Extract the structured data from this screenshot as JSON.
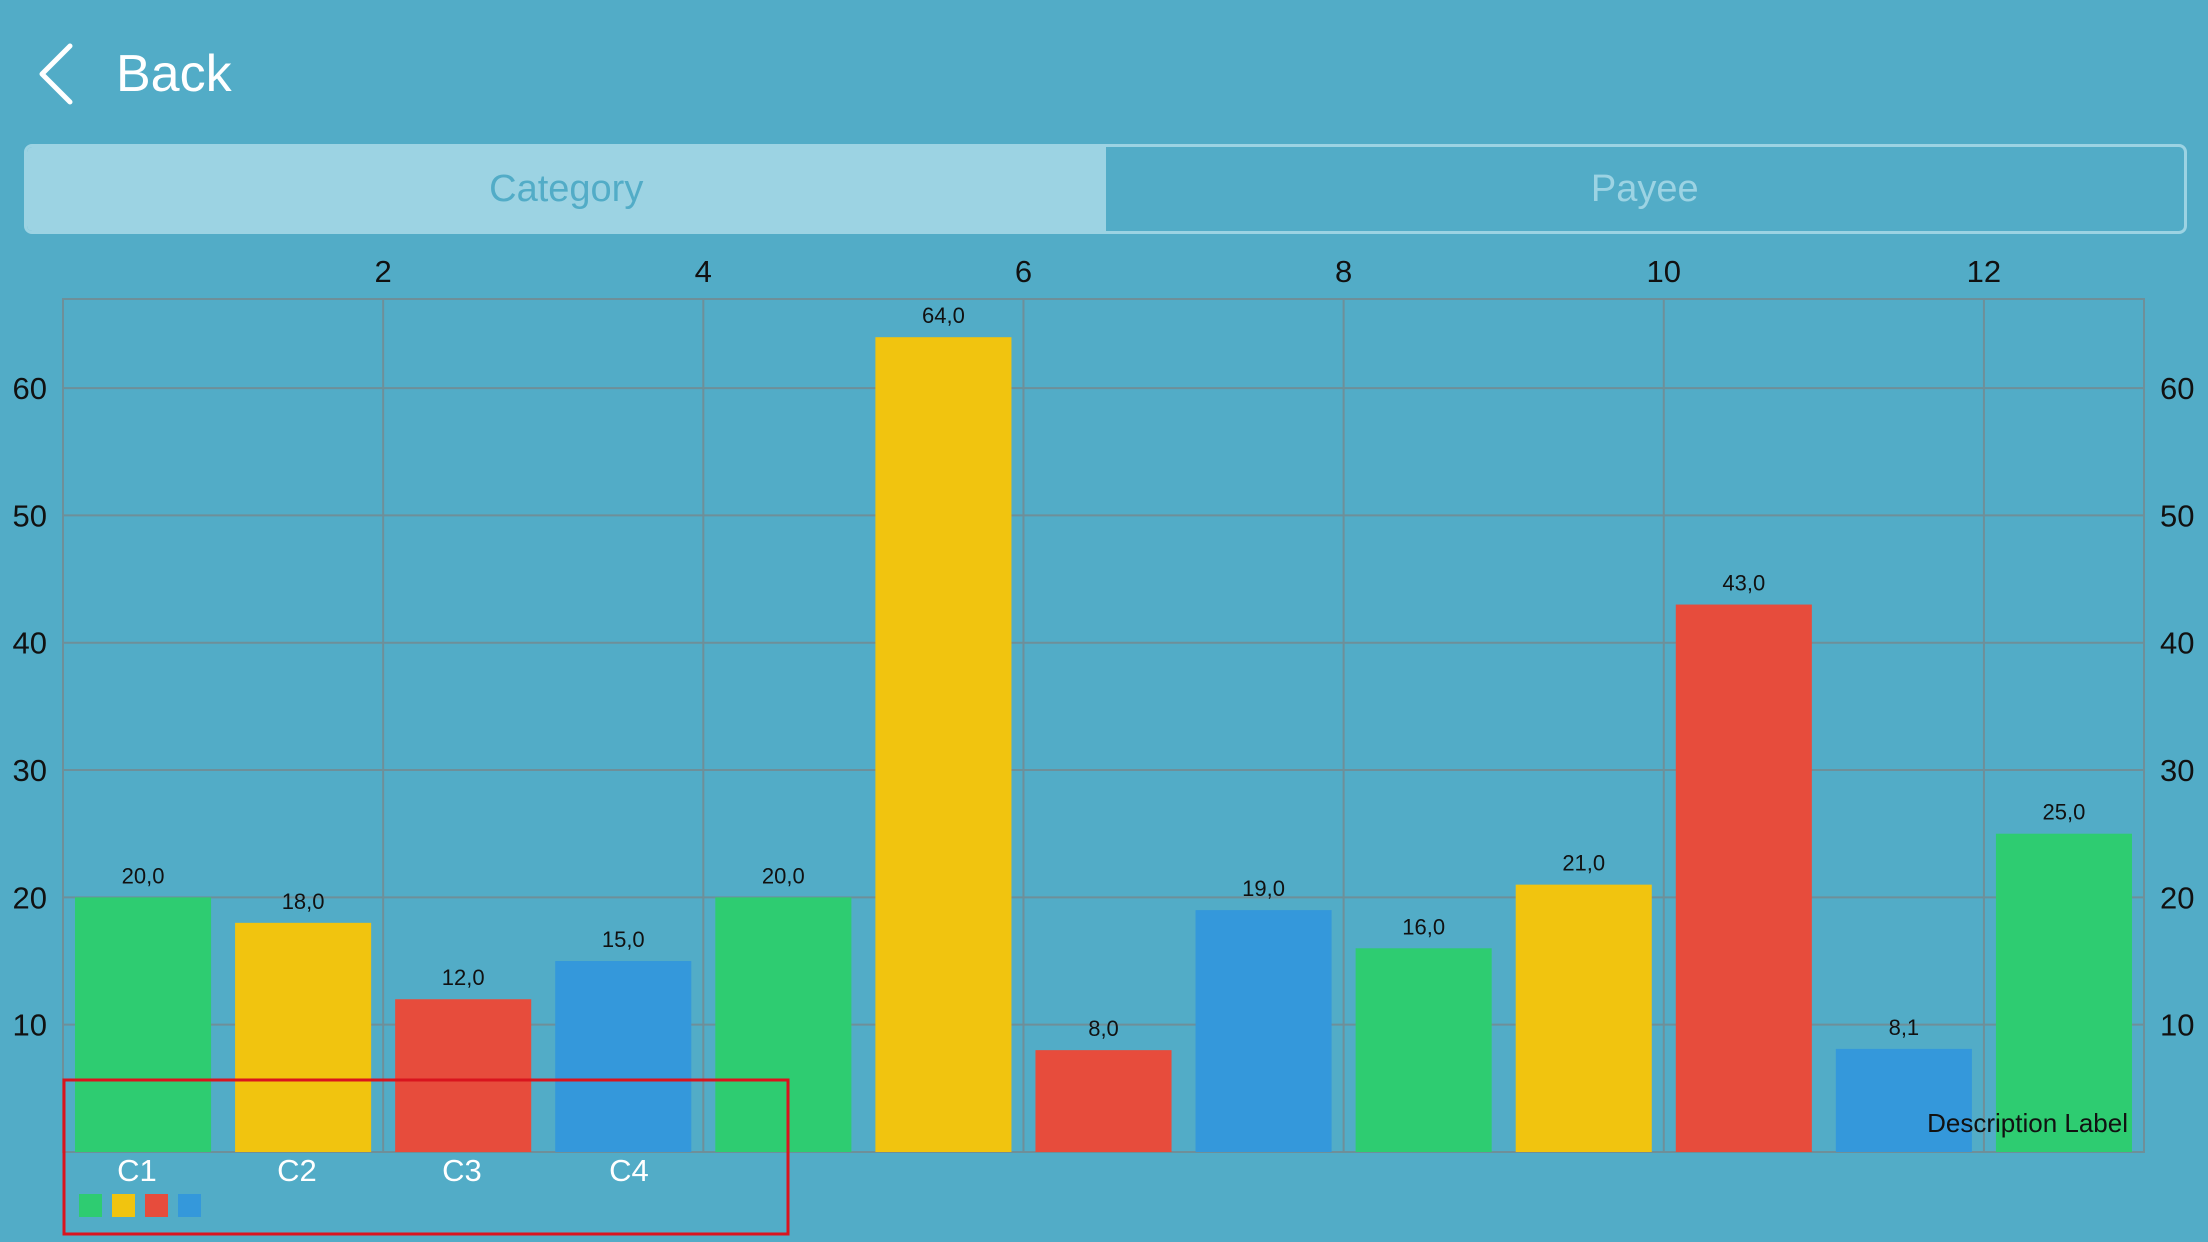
{
  "nav": {
    "back_label": "Back"
  },
  "segments": {
    "category": "Category",
    "payee": "Payee",
    "selected": "category"
  },
  "legend": [
    {
      "label": "C1",
      "color": "#2ecc71"
    },
    {
      "label": "C2",
      "color": "#f1c40f"
    },
    {
      "label": "C3",
      "color": "#e74c3c"
    },
    {
      "label": "C4",
      "color": "#3498db"
    }
  ],
  "chart_data": {
    "type": "bar",
    "description": "Description Label",
    "x": [
      0.5,
      1.5,
      2.5,
      3.5,
      4.5,
      5.5,
      6.5,
      7.5,
      8.5,
      9.5,
      10.5,
      11.5,
      12.5
    ],
    "values": [
      20.0,
      18.0,
      12.0,
      15.0,
      20.0,
      64.0,
      8.0,
      19.0,
      16.0,
      21.0,
      43.0,
      8.1,
      25.0
    ],
    "value_labels": [
      "20,0",
      "18,0",
      "12,0",
      "15,0",
      "20,0",
      "64,0",
      "8,0",
      "19,0",
      "16,0",
      "21,0",
      "43,0",
      "8,1",
      "25,0"
    ],
    "series_index": [
      0,
      1,
      2,
      3,
      0,
      1,
      2,
      3,
      0,
      1,
      2,
      3,
      0
    ],
    "xlim": [
      0,
      13
    ],
    "ylim": [
      0,
      67
    ],
    "x_ticks": [
      "2",
      "4",
      "6",
      "8",
      "10",
      "12"
    ],
    "x_tick_values": [
      2,
      4,
      6,
      8,
      10,
      12
    ],
    "y_ticks": [
      "10",
      "20",
      "30",
      "40",
      "50",
      "60"
    ],
    "y_tick_values": [
      10,
      20,
      30,
      40,
      50,
      60
    ],
    "x_axis_position": "top",
    "y_axis_position": "left and right",
    "grid": true,
    "legend_position": "bottom-left",
    "colors": {
      "grid": "#6e8f99",
      "axis_text": "#111111",
      "legend_text": "#ffffff",
      "legend_highlight": "#d9141e"
    }
  }
}
